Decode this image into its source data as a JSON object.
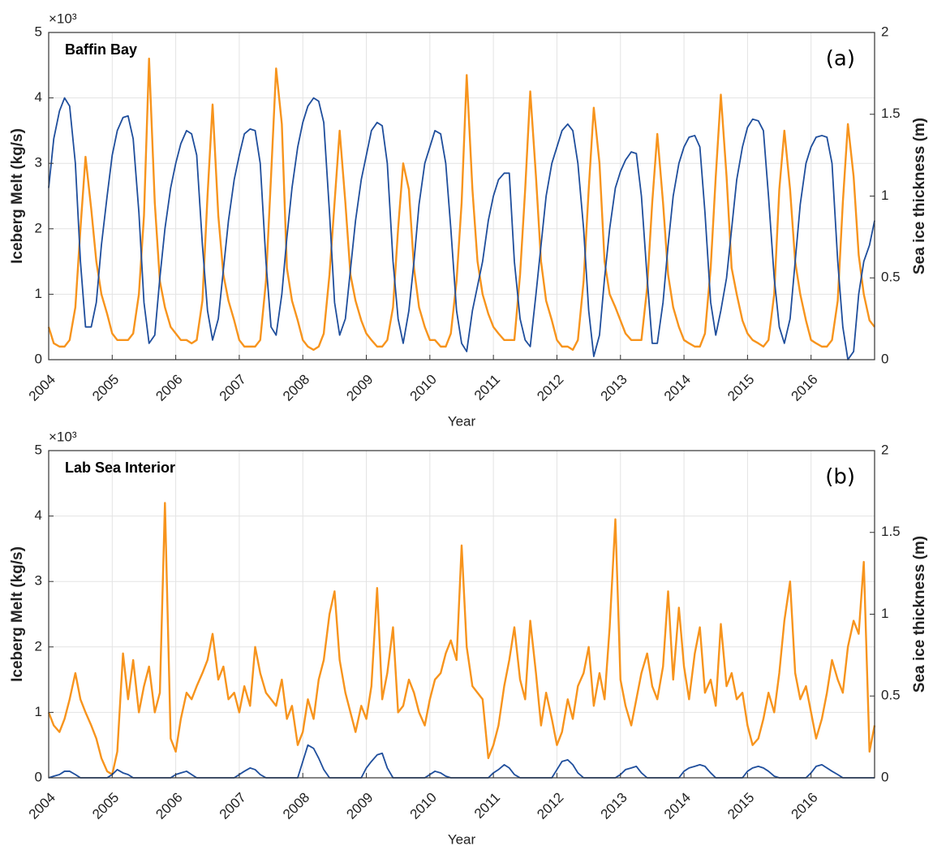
{
  "chart_data": [
    {
      "type": "line",
      "title": "Baffin Bay",
      "panel_label": "(a)",
      "x_label": "Year",
      "y_label": "Iceberg Melt (kg/s)",
      "y2_label": "Sea ice thickness (m)",
      "y_multiplier": "×10³",
      "xlim": [
        2004,
        2017
      ],
      "xticks": [
        2004,
        2005,
        2006,
        2007,
        2008,
        2009,
        2010,
        2011,
        2012,
        2013,
        2014,
        2015,
        2016
      ],
      "ylim": [
        0,
        5
      ],
      "yticks": [
        0,
        1,
        2,
        3,
        4,
        5
      ],
      "y2lim": [
        0,
        2
      ],
      "y2ticks": [
        0,
        0.5,
        1,
        1.5,
        2
      ],
      "grid": true,
      "x": [
        2004,
        2004.08,
        2004.17,
        2004.25,
        2004.33,
        2004.42,
        2004.5,
        2004.58,
        2004.67,
        2004.75,
        2004.83,
        2004.92,
        2005,
        2005.08,
        2005.17,
        2005.25,
        2005.33,
        2005.42,
        2005.5,
        2005.58,
        2005.67,
        2005.75,
        2005.83,
        2005.92,
        2006,
        2006.08,
        2006.17,
        2006.25,
        2006.33,
        2006.42,
        2006.5,
        2006.58,
        2006.67,
        2006.75,
        2006.83,
        2006.92,
        2007,
        2007.08,
        2007.17,
        2007.25,
        2007.33,
        2007.42,
        2007.5,
        2007.58,
        2007.67,
        2007.75,
        2007.83,
        2007.92,
        2008,
        2008.08,
        2008.17,
        2008.25,
        2008.33,
        2008.42,
        2008.5,
        2008.58,
        2008.67,
        2008.75,
        2008.83,
        2008.92,
        2009,
        2009.08,
        2009.17,
        2009.25,
        2009.33,
        2009.42,
        2009.5,
        2009.58,
        2009.67,
        2009.75,
        2009.83,
        2009.92,
        2010,
        2010.08,
        2010.17,
        2010.25,
        2010.33,
        2010.42,
        2010.5,
        2010.58,
        2010.67,
        2010.75,
        2010.83,
        2010.92,
        2011,
        2011.08,
        2011.17,
        2011.25,
        2011.33,
        2011.42,
        2011.5,
        2011.58,
        2011.67,
        2011.75,
        2011.83,
        2011.92,
        2012,
        2012.08,
        2012.17,
        2012.25,
        2012.33,
        2012.42,
        2012.5,
        2012.58,
        2012.67,
        2012.75,
        2012.83,
        2012.92,
        2013,
        2013.08,
        2013.17,
        2013.25,
        2013.33,
        2013.42,
        2013.5,
        2013.58,
        2013.67,
        2013.75,
        2013.83,
        2013.92,
        2014,
        2014.08,
        2014.17,
        2014.25,
        2014.33,
        2014.42,
        2014.5,
        2014.58,
        2014.67,
        2014.75,
        2014.83,
        2014.92,
        2015,
        2015.08,
        2015.17,
        2015.25,
        2015.33,
        2015.42,
        2015.5,
        2015.58,
        2015.67,
        2015.75,
        2015.83,
        2015.92,
        2016,
        2016.08,
        2016.17,
        2016.25,
        2016.33,
        2016.42,
        2016.5,
        2016.58,
        2016.67,
        2016.75,
        2016.83,
        2016.92,
        2017
      ],
      "series": [
        {
          "name": "Iceberg Melt",
          "color": "#f7941d",
          "axis": "y",
          "values": [
            0.5,
            0.25,
            0.2,
            0.2,
            0.3,
            0.8,
            2.0,
            3.1,
            2.3,
            1.5,
            1.0,
            0.7,
            0.4,
            0.3,
            0.3,
            0.3,
            0.4,
            1.0,
            2.2,
            4.6,
            2.4,
            1.2,
            0.8,
            0.5,
            0.4,
            0.3,
            0.3,
            0.25,
            0.3,
            0.9,
            2.5,
            3.9,
            2.2,
            1.3,
            0.9,
            0.6,
            0.3,
            0.2,
            0.2,
            0.2,
            0.3,
            1.2,
            2.8,
            4.45,
            3.6,
            1.4,
            0.9,
            0.6,
            0.3,
            0.2,
            0.15,
            0.2,
            0.4,
            1.3,
            2.4,
            3.5,
            2.4,
            1.3,
            0.9,
            0.6,
            0.4,
            0.3,
            0.2,
            0.2,
            0.3,
            0.8,
            2.0,
            3.0,
            2.6,
            1.4,
            0.8,
            0.5,
            0.3,
            0.3,
            0.2,
            0.2,
            0.4,
            1.2,
            2.4,
            4.35,
            2.6,
            1.5,
            1.0,
            0.7,
            0.5,
            0.4,
            0.3,
            0.3,
            0.3,
            1.3,
            2.6,
            4.1,
            2.8,
            1.5,
            0.9,
            0.6,
            0.3,
            0.2,
            0.2,
            0.15,
            0.3,
            1.2,
            2.6,
            3.85,
            3.0,
            1.5,
            1.0,
            0.8,
            0.6,
            0.4,
            0.3,
            0.3,
            0.3,
            1.1,
            2.4,
            3.45,
            2.4,
            1.3,
            0.8,
            0.5,
            0.3,
            0.25,
            0.2,
            0.2,
            0.4,
            1.4,
            2.8,
            4.05,
            2.8,
            1.4,
            1.0,
            0.6,
            0.4,
            0.3,
            0.25,
            0.2,
            0.3,
            1.0,
            2.6,
            3.5,
            2.6,
            1.5,
            1.0,
            0.6,
            0.3,
            0.25,
            0.2,
            0.2,
            0.3,
            0.9,
            2.4,
            3.6,
            2.8,
            1.6,
            1.0,
            0.6,
            0.5
          ]
        },
        {
          "name": "Sea ice thickness",
          "color": "#1f4e9c",
          "axis": "y2",
          "values": [
            1.05,
            1.35,
            1.52,
            1.6,
            1.55,
            1.2,
            0.6,
            0.2,
            0.2,
            0.35,
            0.7,
            1.0,
            1.25,
            1.4,
            1.48,
            1.49,
            1.35,
            0.9,
            0.35,
            0.1,
            0.15,
            0.5,
            0.8,
            1.05,
            1.2,
            1.32,
            1.4,
            1.38,
            1.25,
            0.7,
            0.3,
            0.12,
            0.25,
            0.55,
            0.85,
            1.1,
            1.25,
            1.38,
            1.41,
            1.4,
            1.2,
            0.6,
            0.2,
            0.15,
            0.4,
            0.75,
            1.05,
            1.3,
            1.45,
            1.55,
            1.6,
            1.58,
            1.45,
            0.9,
            0.35,
            0.15,
            0.25,
            0.55,
            0.85,
            1.1,
            1.25,
            1.4,
            1.45,
            1.43,
            1.2,
            0.6,
            0.25,
            0.1,
            0.3,
            0.6,
            0.95,
            1.2,
            1.3,
            1.4,
            1.38,
            1.2,
            0.8,
            0.3,
            0.1,
            0.05,
            0.3,
            0.45,
            0.6,
            0.85,
            1.0,
            1.1,
            1.14,
            1.14,
            0.6,
            0.25,
            0.12,
            0.08,
            0.4,
            0.7,
            1.0,
            1.2,
            1.3,
            1.4,
            1.44,
            1.4,
            1.2,
            0.8,
            0.3,
            0.02,
            0.15,
            0.5,
            0.8,
            1.05,
            1.15,
            1.22,
            1.27,
            1.26,
            1.0,
            0.5,
            0.1,
            0.1,
            0.35,
            0.7,
            1.0,
            1.2,
            1.3,
            1.36,
            1.37,
            1.3,
            0.9,
            0.35,
            0.15,
            0.3,
            0.5,
            0.8,
            1.1,
            1.3,
            1.42,
            1.47,
            1.46,
            1.4,
            1.0,
            0.5,
            0.2,
            0.1,
            0.25,
            0.6,
            0.95,
            1.2,
            1.3,
            1.36,
            1.37,
            1.36,
            1.2,
            0.6,
            0.2,
            0.0,
            0.05,
            0.4,
            0.6,
            0.7,
            0.85
          ]
        }
      ]
    },
    {
      "type": "line",
      "title": "Lab Sea Interior",
      "panel_label": "(b)",
      "x_label": "Year",
      "y_label": "Iceberg Melt (kg/s)",
      "y2_label": "Sea ice thickness (m)",
      "y_multiplier": "×10³",
      "xlim": [
        2004,
        2017
      ],
      "xticks": [
        2004,
        2005,
        2006,
        2007,
        2008,
        2009,
        2010,
        2011,
        2012,
        2013,
        2014,
        2015,
        2016
      ],
      "ylim": [
        0,
        5
      ],
      "yticks": [
        0,
        1,
        2,
        3,
        4,
        5
      ],
      "y2lim": [
        0,
        2
      ],
      "y2ticks": [
        0,
        0.5,
        1,
        1.5,
        2
      ],
      "grid": true,
      "x": [
        2004,
        2004.08,
        2004.17,
        2004.25,
        2004.33,
        2004.42,
        2004.5,
        2004.58,
        2004.67,
        2004.75,
        2004.83,
        2004.92,
        2005,
        2005.08,
        2005.17,
        2005.25,
        2005.33,
        2005.42,
        2005.5,
        2005.58,
        2005.67,
        2005.75,
        2005.83,
        2005.92,
        2006,
        2006.08,
        2006.17,
        2006.25,
        2006.33,
        2006.42,
        2006.5,
        2006.58,
        2006.67,
        2006.75,
        2006.83,
        2006.92,
        2007,
        2007.08,
        2007.17,
        2007.25,
        2007.33,
        2007.42,
        2007.5,
        2007.58,
        2007.67,
        2007.75,
        2007.83,
        2007.92,
        2008,
        2008.08,
        2008.17,
        2008.25,
        2008.33,
        2008.42,
        2008.5,
        2008.58,
        2008.67,
        2008.75,
        2008.83,
        2008.92,
        2009,
        2009.08,
        2009.17,
        2009.25,
        2009.33,
        2009.42,
        2009.5,
        2009.58,
        2009.67,
        2009.75,
        2009.83,
        2009.92,
        2010,
        2010.08,
        2010.17,
        2010.25,
        2010.33,
        2010.42,
        2010.5,
        2010.58,
        2010.67,
        2010.75,
        2010.83,
        2010.92,
        2011,
        2011.08,
        2011.17,
        2011.25,
        2011.33,
        2011.42,
        2011.5,
        2011.58,
        2011.67,
        2011.75,
        2011.83,
        2011.92,
        2012,
        2012.08,
        2012.17,
        2012.25,
        2012.33,
        2012.42,
        2012.5,
        2012.58,
        2012.67,
        2012.75,
        2012.83,
        2012.92,
        2013,
        2013.08,
        2013.17,
        2013.25,
        2013.33,
        2013.42,
        2013.5,
        2013.58,
        2013.67,
        2013.75,
        2013.83,
        2013.92,
        2014,
        2014.08,
        2014.17,
        2014.25,
        2014.33,
        2014.42,
        2014.5,
        2014.58,
        2014.67,
        2014.75,
        2014.83,
        2014.92,
        2015,
        2015.08,
        2015.17,
        2015.25,
        2015.33,
        2015.42,
        2015.5,
        2015.58,
        2015.67,
        2015.75,
        2015.83,
        2015.92,
        2016,
        2016.08,
        2016.17,
        2016.25,
        2016.33,
        2016.42,
        2016.5,
        2016.58,
        2016.67,
        2016.75,
        2016.83,
        2016.92,
        2017
      ],
      "series": [
        {
          "name": "Iceberg Melt",
          "color": "#f7941d",
          "axis": "y",
          "values": [
            1.0,
            0.8,
            0.7,
            0.9,
            1.2,
            1.6,
            1.2,
            1.0,
            0.8,
            0.6,
            0.3,
            0.1,
            0.05,
            0.4,
            1.9,
            1.2,
            1.8,
            1.0,
            1.4,
            1.7,
            1.0,
            1.3,
            4.2,
            0.6,
            0.4,
            0.9,
            1.3,
            1.2,
            1.4,
            1.6,
            1.8,
            2.2,
            1.5,
            1.7,
            1.2,
            1.3,
            1.0,
            1.4,
            1.1,
            2.0,
            1.6,
            1.3,
            1.2,
            1.1,
            1.5,
            0.9,
            1.1,
            0.5,
            0.7,
            1.2,
            0.9,
            1.5,
            1.8,
            2.5,
            2.85,
            1.8,
            1.3,
            1.0,
            0.7,
            1.1,
            0.9,
            1.4,
            2.9,
            1.2,
            1.6,
            2.3,
            1.0,
            1.1,
            1.5,
            1.3,
            1.0,
            0.8,
            1.2,
            1.5,
            1.6,
            1.9,
            2.1,
            1.8,
            3.55,
            2.0,
            1.4,
            1.3,
            1.2,
            0.3,
            0.5,
            0.8,
            1.4,
            1.8,
            2.3,
            1.5,
            1.2,
            2.4,
            1.6,
            0.8,
            1.3,
            0.9,
            0.5,
            0.7,
            1.2,
            0.9,
            1.4,
            1.6,
            2.0,
            1.1,
            1.6,
            1.2,
            2.3,
            3.95,
            1.5,
            1.1,
            0.8,
            1.2,
            1.6,
            1.9,
            1.4,
            1.2,
            1.7,
            2.85,
            1.5,
            2.6,
            1.7,
            1.2,
            1.9,
            2.3,
            1.3,
            1.5,
            1.1,
            2.35,
            1.4,
            1.6,
            1.2,
            1.3,
            0.8,
            0.5,
            0.6,
            0.9,
            1.3,
            1.0,
            1.6,
            2.4,
            3.0,
            1.6,
            1.2,
            1.4,
            1.0,
            0.6,
            0.9,
            1.3,
            1.8,
            1.5,
            1.3,
            2.0,
            2.4,
            2.2,
            3.3,
            0.4,
            0.8
          ]
        },
        {
          "name": "Sea ice thickness",
          "color": "#1f4e9c",
          "axis": "y2",
          "values": [
            0,
            0.01,
            0.02,
            0.04,
            0.04,
            0.02,
            0,
            0,
            0,
            0,
            0,
            0,
            0.02,
            0.05,
            0.03,
            0.02,
            0,
            0,
            0,
            0,
            0,
            0,
            0,
            0,
            0.02,
            0.03,
            0.04,
            0.02,
            0,
            0,
            0,
            0,
            0,
            0,
            0,
            0,
            0.02,
            0.04,
            0.06,
            0.05,
            0.02,
            0,
            0,
            0,
            0,
            0,
            0,
            0,
            0.1,
            0.2,
            0.18,
            0.12,
            0.05,
            0,
            0,
            0,
            0,
            0,
            0,
            0,
            0.06,
            0.1,
            0.14,
            0.15,
            0.06,
            0,
            0,
            0,
            0,
            0,
            0,
            0,
            0.02,
            0.04,
            0.03,
            0.01,
            0,
            0,
            0,
            0,
            0,
            0,
            0,
            0,
            0.03,
            0.05,
            0.08,
            0.06,
            0.02,
            0,
            0,
            0,
            0,
            0,
            0,
            0,
            0.05,
            0.1,
            0.11,
            0.08,
            0.03,
            0,
            0,
            0,
            0,
            0,
            0,
            0,
            0.02,
            0.05,
            0.06,
            0.07,
            0.03,
            0,
            0,
            0,
            0,
            0,
            0,
            0,
            0.04,
            0.06,
            0.07,
            0.08,
            0.07,
            0.03,
            0,
            0,
            0,
            0,
            0,
            0,
            0.04,
            0.06,
            0.07,
            0.06,
            0.04,
            0.01,
            0,
            0,
            0,
            0,
            0,
            0,
            0.03,
            0.07,
            0.08,
            0.06,
            0.04,
            0.02,
            0,
            0,
            0,
            0,
            0,
            0,
            0
          ]
        }
      ]
    }
  ]
}
